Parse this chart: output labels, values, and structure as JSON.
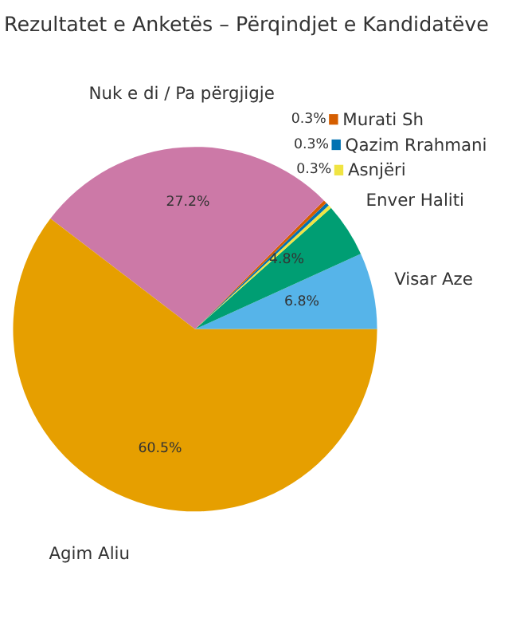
{
  "chart_data": {
    "type": "pie",
    "title": "Rezultatet e Anketës – Përqindjet e Kandidatëve",
    "categories": [
      "Visar Aze",
      "Enver Haliti",
      "Asnjëri",
      "Qazim Rrahmani",
      "Murati Sh",
      "Nuk e di / Pa përgjigje",
      "Agim Aliu"
    ],
    "values": [
      6.8,
      4.8,
      0.3,
      0.3,
      0.3,
      27.2,
      60.5
    ],
    "colors": [
      "#56b4e9",
      "#009e73",
      "#f0e442",
      "#0072b2",
      "#d55e00",
      "#cc79a7",
      "#e69f00"
    ],
    "legend": "top right",
    "value_labels": [
      "6.8%",
      "4.8%",
      "0.3%",
      "0.3%",
      "0.3%",
      "27.2%",
      "60.5%"
    ]
  }
}
